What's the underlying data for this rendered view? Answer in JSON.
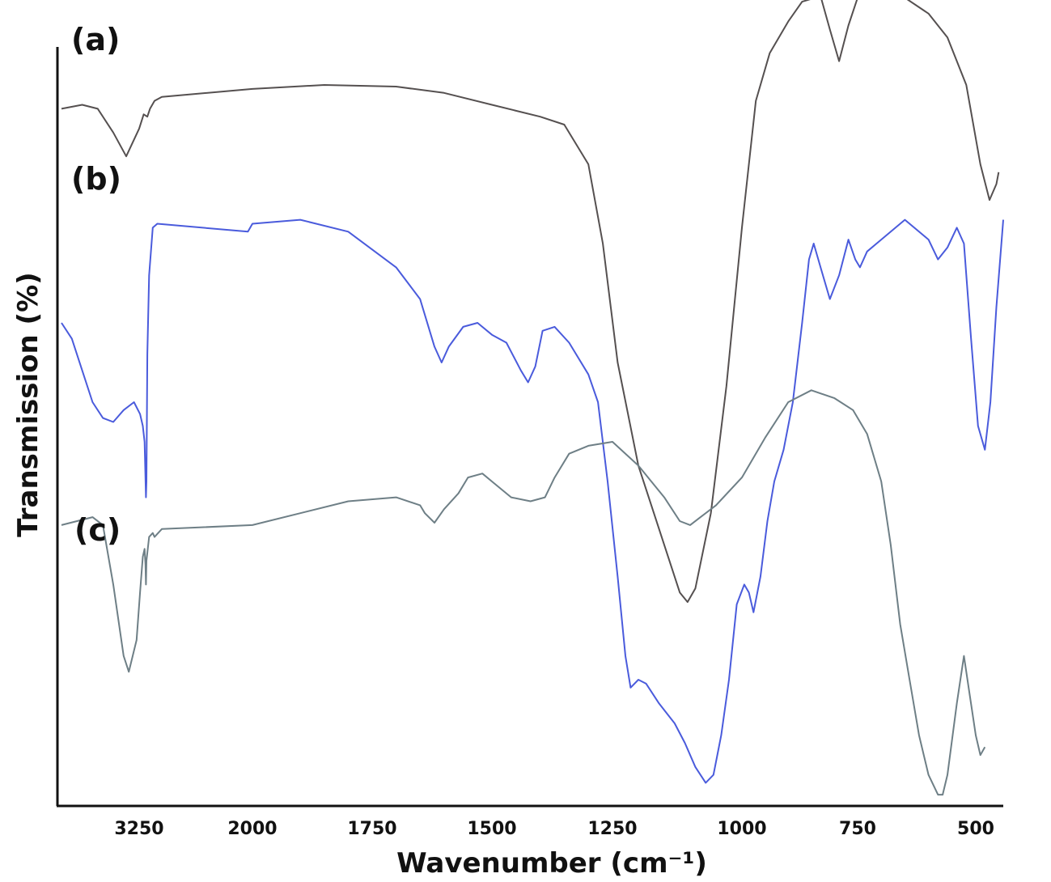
{
  "chart_data": {
    "type": "line",
    "xlabel": "Wavenumber (cm⁻¹)",
    "ylabel": "Transmission (%)",
    "x_ticks": [
      3250,
      2000,
      1750,
      1500,
      1250,
      1000,
      750,
      500
    ],
    "x_tick_labels": [
      "3250",
      "2000",
      "1750",
      "1500",
      "1250",
      "1000",
      "750",
      "500"
    ],
    "grid": false,
    "y_tick_labels": false,
    "series": [
      {
        "name": "(a)",
        "color": "#555050",
        "values": [
          [
            3400,
            87.0
          ],
          [
            3360,
            87.5
          ],
          [
            3330,
            87.0
          ],
          [
            3300,
            84.0
          ],
          [
            3275,
            81.0
          ],
          [
            3250,
            84.5
          ],
          [
            3200,
            86.3
          ],
          [
            3160,
            86.0
          ],
          [
            3130,
            87.0
          ],
          [
            3080,
            88.0
          ],
          [
            3000,
            88.5
          ],
          [
            2000,
            89.5
          ],
          [
            1850,
            90.0
          ],
          [
            1700,
            89.8
          ],
          [
            1600,
            89.0
          ],
          [
            1500,
            87.5
          ],
          [
            1400,
            86.0
          ],
          [
            1350,
            85.0
          ],
          [
            1300,
            80.0
          ],
          [
            1270,
            70.0
          ],
          [
            1240,
            55.0
          ],
          [
            1200,
            42.0
          ],
          [
            1150,
            32.0
          ],
          [
            1120,
            26.0
          ],
          [
            1105,
            24.8
          ],
          [
            1090,
            26.5
          ],
          [
            1060,
            36.0
          ],
          [
            1030,
            52.0
          ],
          [
            1000,
            72.0
          ],
          [
            970,
            88.0
          ],
          [
            940,
            94.0
          ],
          [
            900,
            98.0
          ],
          [
            870,
            100.5
          ],
          [
            830,
            101.2
          ],
          [
            810,
            97.0
          ],
          [
            790,
            93.0
          ],
          [
            770,
            97.5
          ],
          [
            750,
            101.0
          ],
          [
            700,
            101.5
          ],
          [
            650,
            101.0
          ],
          [
            600,
            99.0
          ],
          [
            560,
            96.0
          ],
          [
            520,
            90.0
          ],
          [
            490,
            80.0
          ],
          [
            470,
            75.5
          ],
          [
            455,
            77.5
          ],
          [
            450,
            79.0
          ]
        ]
      },
      {
        "name": "(b)",
        "color": "#4a5bdc",
        "values": [
          [
            3400,
            60.0
          ],
          [
            3380,
            58.0
          ],
          [
            3360,
            54.0
          ],
          [
            3340,
            50.0
          ],
          [
            3320,
            48.0
          ],
          [
            3300,
            47.5
          ],
          [
            3280,
            49.0
          ],
          [
            3260,
            50.0
          ],
          [
            3240,
            48.5
          ],
          [
            3210,
            47.0
          ],
          [
            3190,
            45.0
          ],
          [
            3175,
            38.0
          ],
          [
            3170,
            40.0
          ],
          [
            3160,
            56.0
          ],
          [
            3140,
            66.0
          ],
          [
            3100,
            72.0
          ],
          [
            3050,
            72.5
          ],
          [
            2050,
            71.5
          ],
          [
            2000,
            72.5
          ],
          [
            1900,
            73.0
          ],
          [
            1800,
            71.5
          ],
          [
            1700,
            67.0
          ],
          [
            1650,
            63.0
          ],
          [
            1620,
            57.0
          ],
          [
            1605,
            55.0
          ],
          [
            1590,
            57.0
          ],
          [
            1560,
            59.5
          ],
          [
            1530,
            60.0
          ],
          [
            1500,
            58.5
          ],
          [
            1470,
            57.5
          ],
          [
            1440,
            54.0
          ],
          [
            1425,
            52.5
          ],
          [
            1410,
            54.5
          ],
          [
            1395,
            59.0
          ],
          [
            1370,
            59.5
          ],
          [
            1340,
            57.5
          ],
          [
            1300,
            53.5
          ],
          [
            1280,
            50.0
          ],
          [
            1260,
            40.0
          ],
          [
            1240,
            28.0
          ],
          [
            1225,
            18.0
          ],
          [
            1215,
            14.0
          ],
          [
            1200,
            15.0
          ],
          [
            1185,
            14.5
          ],
          [
            1160,
            12.0
          ],
          [
            1130,
            9.5
          ],
          [
            1110,
            7.0
          ],
          [
            1090,
            4.0
          ],
          [
            1070,
            2.0
          ],
          [
            1055,
            3.0
          ],
          [
            1040,
            8.0
          ],
          [
            1025,
            15.0
          ],
          [
            1010,
            24.5
          ],
          [
            995,
            27.0
          ],
          [
            985,
            26.0
          ],
          [
            975,
            23.5
          ],
          [
            960,
            28.0
          ],
          [
            945,
            35.0
          ],
          [
            930,
            40.0
          ],
          [
            910,
            44.0
          ],
          [
            890,
            50.0
          ],
          [
            870,
            60.0
          ],
          [
            855,
            68.0
          ],
          [
            845,
            70.0
          ],
          [
            830,
            67.0
          ],
          [
            810,
            63.0
          ],
          [
            790,
            66.0
          ],
          [
            770,
            70.5
          ],
          [
            755,
            68.0
          ],
          [
            745,
            67.0
          ],
          [
            730,
            69.0
          ],
          [
            700,
            70.5
          ],
          [
            650,
            73.0
          ],
          [
            600,
            70.5
          ],
          [
            580,
            68.0
          ],
          [
            560,
            69.5
          ],
          [
            540,
            72.0
          ],
          [
            525,
            70.0
          ],
          [
            510,
            58.0
          ],
          [
            495,
            47.0
          ],
          [
            480,
            44.0
          ],
          [
            468,
            50.0
          ],
          [
            455,
            62.0
          ],
          [
            440,
            73.0
          ]
        ]
      },
      {
        "name": "(c)",
        "color": "#6e7f86",
        "values": [
          [
            3400,
            34.5
          ],
          [
            3370,
            35.0
          ],
          [
            3340,
            35.5
          ],
          [
            3320,
            34.5
          ],
          [
            3300,
            27.0
          ],
          [
            3280,
            18.0
          ],
          [
            3270,
            16.0
          ],
          [
            3255,
            20.0
          ],
          [
            3240,
            26.0
          ],
          [
            3210,
            30.5
          ],
          [
            3190,
            31.5
          ],
          [
            3180,
            29.5
          ],
          [
            3175,
            27.0
          ],
          [
            3170,
            30.0
          ],
          [
            3160,
            31.0
          ],
          [
            3140,
            33.0
          ],
          [
            3100,
            33.5
          ],
          [
            3080,
            33.0
          ],
          [
            3000,
            34.0
          ],
          [
            2000,
            34.5
          ],
          [
            1900,
            36.0
          ],
          [
            1800,
            37.5
          ],
          [
            1700,
            38.0
          ],
          [
            1650,
            37.0
          ],
          [
            1640,
            36.0
          ],
          [
            1620,
            34.8
          ],
          [
            1600,
            36.5
          ],
          [
            1570,
            38.5
          ],
          [
            1550,
            40.5
          ],
          [
            1520,
            41.0
          ],
          [
            1500,
            40.0
          ],
          [
            1460,
            38.0
          ],
          [
            1420,
            37.5
          ],
          [
            1390,
            38.0
          ],
          [
            1370,
            40.5
          ],
          [
            1340,
            43.5
          ],
          [
            1300,
            44.5
          ],
          [
            1250,
            45.0
          ],
          [
            1200,
            42.0
          ],
          [
            1150,
            38.0
          ],
          [
            1120,
            35.0
          ],
          [
            1100,
            34.5
          ],
          [
            1080,
            35.5
          ],
          [
            1050,
            37.0
          ],
          [
            1000,
            40.5
          ],
          [
            950,
            45.5
          ],
          [
            900,
            50.0
          ],
          [
            850,
            51.5
          ],
          [
            800,
            50.5
          ],
          [
            760,
            49.0
          ],
          [
            730,
            46.0
          ],
          [
            700,
            40.0
          ],
          [
            680,
            32.0
          ],
          [
            660,
            22.0
          ],
          [
            640,
            15.0
          ],
          [
            620,
            8.0
          ],
          [
            600,
            3.0
          ],
          [
            580,
            0.5
          ],
          [
            570,
            0.5
          ],
          [
            560,
            3.0
          ],
          [
            540,
            12.0
          ],
          [
            525,
            18.0
          ],
          [
            515,
            14.0
          ],
          [
            500,
            8.0
          ],
          [
            490,
            5.5
          ],
          [
            480,
            6.5
          ]
        ]
      }
    ],
    "panel_labels": [
      "(a)",
      "(b)",
      "(c)"
    ]
  }
}
